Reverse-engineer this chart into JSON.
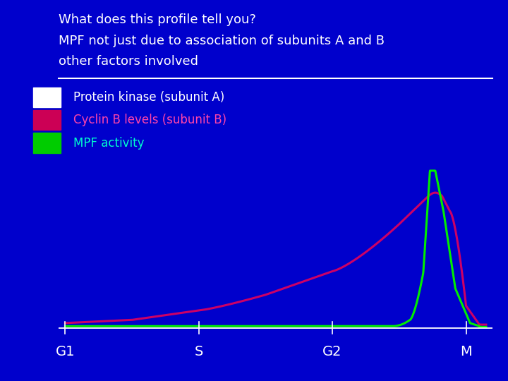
{
  "background_color": "#0000cc",
  "title_line1": "What does this profile tell you?",
  "subtitle_line1": "MPF not just due to association of subunits A and B",
  "subtitle_line2": "other factors involved",
  "title_color": "#ffffff",
  "legend_labels": [
    "Protein kinase (subunit A)",
    "Cyclin B levels (subunit B)",
    "MPF activity"
  ],
  "legend_colors": [
    "#ffffff",
    "#cc0055",
    "#00cc00"
  ],
  "legend_text_colors": [
    "#ffffff",
    "#ff44aa",
    "#00ffcc"
  ],
  "x_tick_labels": [
    "G1",
    "S",
    "G2",
    "M"
  ],
  "cyclin_color": "#cc0066",
  "mpf_color": "#00ee00",
  "separator_color": "#ffffff"
}
